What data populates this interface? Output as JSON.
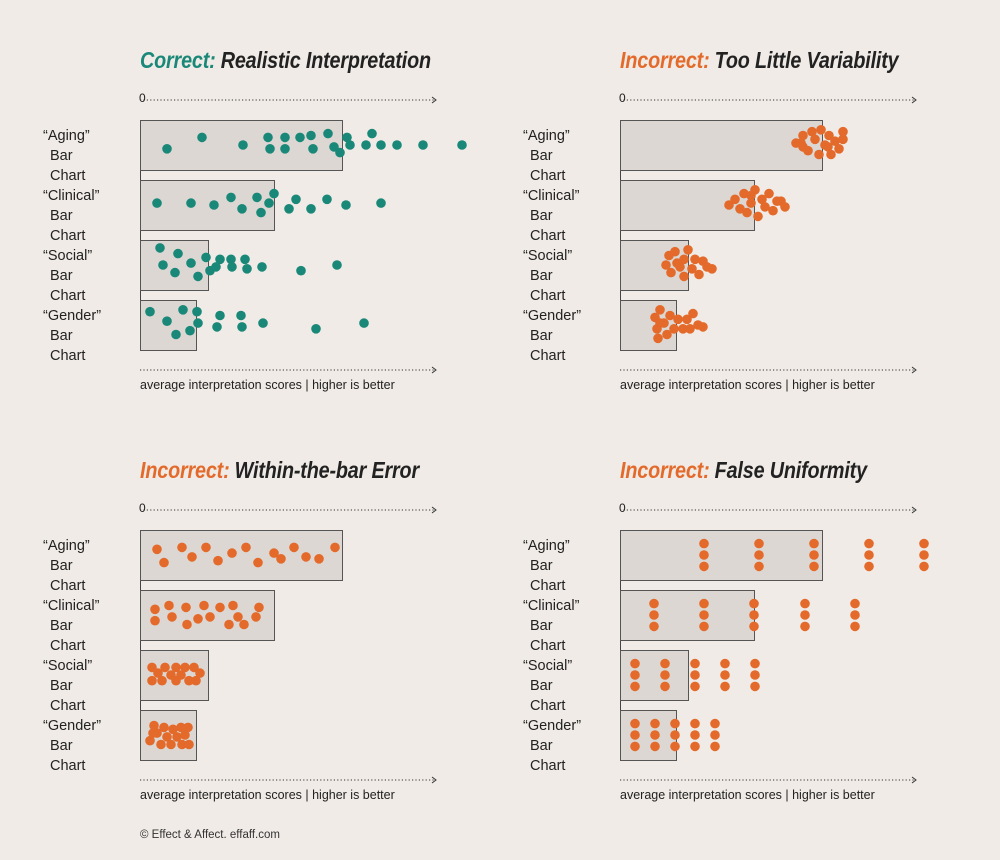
{
  "footer_credit": "© Effect & Affect. effaff.com",
  "colors": {
    "correct": "#1a8878",
    "incorrect": "#e36a2a",
    "bar_fill": "#dcd7d3",
    "bar_stroke": "#555555",
    "background": "#f0ebe6"
  },
  "chart_data": [
    {
      "type": "bar",
      "title_lead": "Correct:",
      "title_rest": "Realistic Interpretation",
      "lead_color": "#1a8878",
      "dot_color": "#1a8878",
      "axis_zero": "0",
      "xlabel": "average interpretation scores | higher is better",
      "categories": [
        {
          "line1": "“Aging”",
          "line2": "Bar Chart"
        },
        {
          "line1": "“Clinical”",
          "line2": "Bar Chart"
        },
        {
          "line1": "“Social”",
          "line2": "Bar Chart"
        },
        {
          "line1": "“Gender”",
          "line2": "Bar Chart"
        }
      ],
      "xlim": [
        0,
        300
      ],
      "values": [
        202,
        134,
        68,
        56
      ],
      "points": [
        [
          [
            27,
            0.6
          ],
          [
            62,
            0.3
          ],
          [
            103,
            0.5
          ],
          [
            128,
            0.3
          ],
          [
            130,
            0.6
          ],
          [
            145,
            0.3
          ],
          [
            145,
            0.6
          ],
          [
            160,
            0.3
          ],
          [
            171,
            0.25
          ],
          [
            173,
            0.6
          ],
          [
            188,
            0.2
          ],
          [
            194,
            0.55
          ],
          [
            200,
            0.7
          ],
          [
            207,
            0.3
          ],
          [
            210,
            0.5
          ],
          [
            226,
            0.5
          ],
          [
            232,
            0.2
          ],
          [
            241,
            0.5
          ],
          [
            257,
            0.5
          ],
          [
            283,
            0.5
          ],
          [
            322,
            0.5
          ]
        ],
        [
          [
            17,
            0.45
          ],
          [
            51,
            0.45
          ],
          [
            74,
            0.5
          ],
          [
            91,
            0.3
          ],
          [
            102,
            0.6
          ],
          [
            117,
            0.3
          ],
          [
            121,
            0.7
          ],
          [
            129,
            0.45
          ],
          [
            134,
            0.2
          ],
          [
            149,
            0.6
          ],
          [
            156,
            0.35
          ],
          [
            171,
            0.6
          ],
          [
            187,
            0.35
          ],
          [
            206,
            0.5
          ],
          [
            241,
            0.45
          ]
        ],
        [
          [
            20,
            0.05
          ],
          [
            23,
            0.5
          ],
          [
            35,
            0.7
          ],
          [
            38,
            0.2
          ],
          [
            51,
            0.45
          ],
          [
            58,
            0.8
          ],
          [
            66,
            0.3
          ],
          [
            70,
            0.65
          ],
          [
            76,
            0.55
          ],
          [
            80,
            0.35
          ],
          [
            91,
            0.35
          ],
          [
            92,
            0.55
          ],
          [
            105,
            0.35
          ],
          [
            107,
            0.6
          ],
          [
            122,
            0.55
          ],
          [
            161,
            0.65
          ],
          [
            197,
            0.5
          ]
        ],
        [
          [
            10,
            0.15
          ],
          [
            27,
            0.4
          ],
          [
            36,
            0.75
          ],
          [
            43,
            0.1
          ],
          [
            50,
            0.65
          ],
          [
            57,
            0.15
          ],
          [
            58,
            0.45
          ],
          [
            77,
            0.55
          ],
          [
            80,
            0.25
          ],
          [
            101,
            0.25
          ],
          [
            102,
            0.55
          ],
          [
            123,
            0.45
          ],
          [
            176,
            0.6
          ],
          [
            224,
            0.45
          ]
        ]
      ]
    },
    {
      "type": "bar",
      "title_lead": "Incorrect:",
      "title_rest": "Too Little Variability",
      "lead_color": "#e36a2a",
      "dot_color": "#e36a2a",
      "axis_zero": "0",
      "xlabel": "average interpretation scores | higher is better",
      "categories": [
        {
          "line1": "“Aging”",
          "line2": "Bar Chart"
        },
        {
          "line1": "“Clinical”",
          "line2": "Bar Chart"
        },
        {
          "line1": "“Social”",
          "line2": "Bar Chart"
        },
        {
          "line1": "“Gender”",
          "line2": "Bar Chart"
        }
      ],
      "xlim": [
        0,
        300
      ],
      "values": [
        202,
        134,
        68,
        56
      ],
      "points": [
        [
          [
            176,
            0.45
          ],
          [
            183,
            0.25
          ],
          [
            183,
            0.55
          ],
          [
            188,
            0.65
          ],
          [
            192,
            0.15
          ],
          [
            195,
            0.35
          ],
          [
            199,
            0.75
          ],
          [
            201,
            0.1
          ],
          [
            205,
            0.5
          ],
          [
            209,
            0.25
          ],
          [
            211,
            0.75
          ],
          [
            215,
            0.4
          ],
          [
            219,
            0.6
          ],
          [
            223,
            0.35
          ],
          [
            223,
            0.15
          ],
          [
            181,
            0.45
          ],
          [
            208,
            0.55
          ]
        ],
        [
          [
            109,
            0.5
          ],
          [
            115,
            0.35
          ],
          [
            120,
            0.6
          ],
          [
            124,
            0.2
          ],
          [
            127,
            0.7
          ],
          [
            131,
            0.45
          ],
          [
            135,
            0.1
          ],
          [
            138,
            0.8
          ],
          [
            142,
            0.35
          ],
          [
            145,
            0.55
          ],
          [
            149,
            0.2
          ],
          [
            153,
            0.65
          ],
          [
            157,
            0.4
          ],
          [
            161,
            0.4
          ],
          [
            165,
            0.55
          ],
          [
            131,
            0.25
          ]
        ],
        [
          [
            46,
            0.5
          ],
          [
            49,
            0.25
          ],
          [
            51,
            0.7
          ],
          [
            55,
            0.15
          ],
          [
            60,
            0.55
          ],
          [
            64,
            0.35
          ],
          [
            64,
            0.8
          ],
          [
            68,
            0.1
          ],
          [
            72,
            0.6
          ],
          [
            75,
            0.35
          ],
          [
            79,
            0.75
          ],
          [
            83,
            0.4
          ],
          [
            87,
            0.55
          ],
          [
            92,
            0.6
          ],
          [
            57,
            0.45
          ]
        ],
        [
          [
            35,
            0.3
          ],
          [
            37,
            0.6
          ],
          [
            38,
            0.85
          ],
          [
            40,
            0.1
          ],
          [
            44,
            0.45
          ],
          [
            47,
            0.75
          ],
          [
            50,
            0.25
          ],
          [
            54,
            0.6
          ],
          [
            58,
            0.35
          ],
          [
            63,
            0.6
          ],
          [
            67,
            0.35
          ],
          [
            70,
            0.6
          ],
          [
            73,
            0.2
          ],
          [
            78,
            0.5
          ],
          [
            83,
            0.55
          ],
          [
            40,
            0.45
          ]
        ]
      ]
    },
    {
      "type": "bar",
      "title_lead": "Incorrect:",
      "title_rest": "Within-the-bar Error",
      "lead_color": "#e36a2a",
      "dot_color": "#e36a2a",
      "axis_zero": "0",
      "xlabel": "average interpretation scores | higher is better",
      "categories": [
        {
          "line1": "“Aging”",
          "line2": "Bar Chart"
        },
        {
          "line1": "“Clinical”",
          "line2": "Bar Chart"
        },
        {
          "line1": "“Social”",
          "line2": "Bar Chart"
        },
        {
          "line1": "“Gender”",
          "line2": "Bar Chart"
        }
      ],
      "xlim": [
        0,
        300
      ],
      "values": [
        202,
        134,
        68,
        56
      ],
      "points": [
        [
          [
            17,
            0.35
          ],
          [
            24,
            0.7
          ],
          [
            42,
            0.3
          ],
          [
            52,
            0.55
          ],
          [
            66,
            0.3
          ],
          [
            78,
            0.65
          ],
          [
            92,
            0.45
          ],
          [
            106,
            0.3
          ],
          [
            118,
            0.7
          ],
          [
            134,
            0.45
          ],
          [
            141,
            0.6
          ],
          [
            154,
            0.3
          ],
          [
            166,
            0.55
          ],
          [
            179,
            0.6
          ],
          [
            195,
            0.3
          ]
        ],
        [
          [
            15,
            0.35
          ],
          [
            15,
            0.65
          ],
          [
            29,
            0.25
          ],
          [
            32,
            0.55
          ],
          [
            46,
            0.3
          ],
          [
            47,
            0.75
          ],
          [
            58,
            0.6
          ],
          [
            64,
            0.25
          ],
          [
            70,
            0.55
          ],
          [
            80,
            0.3
          ],
          [
            89,
            0.75
          ],
          [
            93,
            0.25
          ],
          [
            98,
            0.55
          ],
          [
            104,
            0.75
          ],
          [
            116,
            0.55
          ],
          [
            119,
            0.3
          ]
        ],
        [
          [
            12,
            0.3
          ],
          [
            12,
            0.65
          ],
          [
            18,
            0.45
          ],
          [
            22,
            0.65
          ],
          [
            25,
            0.3
          ],
          [
            31,
            0.5
          ],
          [
            36,
            0.3
          ],
          [
            36,
            0.65
          ],
          [
            41,
            0.5
          ],
          [
            45,
            0.3
          ],
          [
            49,
            0.65
          ],
          [
            54,
            0.3
          ],
          [
            56,
            0.65
          ],
          [
            60,
            0.45
          ]
        ],
        [
          [
            10,
            0.65
          ],
          [
            14,
            0.25
          ],
          [
            17,
            0.45
          ],
          [
            21,
            0.75
          ],
          [
            24,
            0.3
          ],
          [
            27,
            0.55
          ],
          [
            31,
            0.75
          ],
          [
            33,
            0.35
          ],
          [
            37,
            0.55
          ],
          [
            41,
            0.3
          ],
          [
            42,
            0.75
          ],
          [
            45,
            0.5
          ],
          [
            48,
            0.3
          ],
          [
            49,
            0.75
          ],
          [
            13,
            0.45
          ]
        ]
      ]
    },
    {
      "type": "bar",
      "title_lead": "Incorrect:",
      "title_rest": "False Uniformity",
      "lead_color": "#e36a2a",
      "dot_color": "#e36a2a",
      "axis_zero": "0",
      "xlabel": "average interpretation scores | higher is better",
      "categories": [
        {
          "line1": "“Aging”",
          "line2": "Bar Chart"
        },
        {
          "line1": "“Clinical”",
          "line2": "Bar Chart"
        },
        {
          "line1": "“Social”",
          "line2": "Bar Chart"
        },
        {
          "line1": "“Gender”",
          "line2": "Bar Chart"
        }
      ],
      "xlim": [
        0,
        300
      ],
      "values": [
        202,
        134,
        68,
        56
      ],
      "points": [
        [
          [
            84,
            0.2
          ],
          [
            84,
            0.5
          ],
          [
            84,
            0.8
          ],
          [
            139,
            0.2
          ],
          [
            139,
            0.5
          ],
          [
            139,
            0.8
          ],
          [
            194,
            0.2
          ],
          [
            194,
            0.5
          ],
          [
            194,
            0.8
          ],
          [
            249,
            0.2
          ],
          [
            249,
            0.5
          ],
          [
            249,
            0.8
          ],
          [
            304,
            0.2
          ],
          [
            304,
            0.5
          ],
          [
            304,
            0.8
          ]
        ],
        [
          [
            34,
            0.2
          ],
          [
            34,
            0.5
          ],
          [
            34,
            0.8
          ],
          [
            84,
            0.2
          ],
          [
            84,
            0.5
          ],
          [
            84,
            0.8
          ],
          [
            134,
            0.2
          ],
          [
            134,
            0.5
          ],
          [
            134,
            0.8
          ],
          [
            185,
            0.2
          ],
          [
            185,
            0.5
          ],
          [
            185,
            0.8
          ],
          [
            235,
            0.2
          ],
          [
            235,
            0.5
          ],
          [
            235,
            0.8
          ]
        ],
        [
          [
            15,
            0.2
          ],
          [
            15,
            0.5
          ],
          [
            15,
            0.8
          ],
          [
            45,
            0.2
          ],
          [
            45,
            0.5
          ],
          [
            45,
            0.8
          ],
          [
            75,
            0.2
          ],
          [
            75,
            0.5
          ],
          [
            75,
            0.8
          ],
          [
            105,
            0.2
          ],
          [
            105,
            0.5
          ],
          [
            105,
            0.8
          ],
          [
            135,
            0.2
          ],
          [
            135,
            0.5
          ],
          [
            135,
            0.8
          ]
        ],
        [
          [
            15,
            0.2
          ],
          [
            15,
            0.5
          ],
          [
            15,
            0.8
          ],
          [
            35,
            0.2
          ],
          [
            35,
            0.5
          ],
          [
            35,
            0.8
          ],
          [
            55,
            0.2
          ],
          [
            55,
            0.5
          ],
          [
            55,
            0.8
          ],
          [
            75,
            0.2
          ],
          [
            75,
            0.5
          ],
          [
            75,
            0.8
          ],
          [
            95,
            0.2
          ],
          [
            95,
            0.5
          ],
          [
            95,
            0.8
          ]
        ]
      ]
    }
  ]
}
